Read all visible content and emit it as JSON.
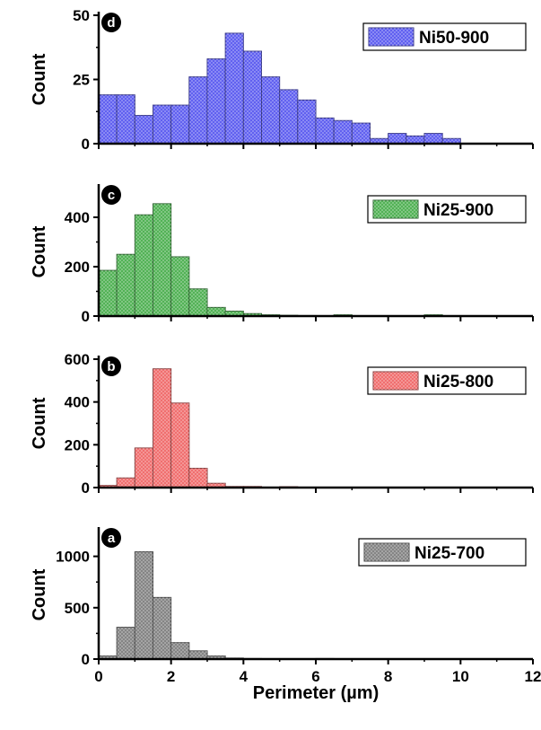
{
  "chart_data": [
    {
      "type": "bar",
      "panel": "d",
      "ylabel": "Count",
      "xlim": [
        0,
        12
      ],
      "ylim": [
        0,
        50
      ],
      "yticks": [
        0,
        25,
        50
      ],
      "bin_width": 0.5,
      "bin_starts": [
        0,
        0.5,
        1,
        1.5,
        2,
        2.5,
        3,
        3.5,
        4,
        4.5,
        5,
        5.5,
        6,
        6.5,
        7,
        7.5,
        8,
        8.5,
        9,
        9.5
      ],
      "series": [
        {
          "name": "Ni50-900",
          "values": [
            19,
            19,
            11,
            15,
            15,
            26,
            33,
            43,
            36,
            26,
            21,
            17,
            10,
            9,
            8,
            2,
            4,
            3,
            4,
            2
          ]
        }
      ],
      "color": "#5b5bf0"
    },
    {
      "type": "bar",
      "panel": "c",
      "ylabel": "Count",
      "xlim": [
        0,
        12
      ],
      "ylim": [
        0,
        520
      ],
      "yticks": [
        0,
        200,
        400
      ],
      "bin_width": 0.5,
      "bin_starts": [
        0,
        0.5,
        1,
        1.5,
        2,
        2.5,
        3,
        3.5,
        4,
        4.5,
        5,
        5.5,
        6,
        6.5,
        7,
        7.5,
        8,
        8.5,
        9,
        9.5
      ],
      "series": [
        {
          "name": "Ni25-900",
          "values": [
            185,
            250,
            410,
            455,
            240,
            110,
            35,
            20,
            10,
            5,
            3,
            2,
            1,
            5,
            1,
            1,
            1,
            1,
            5,
            1
          ]
        }
      ],
      "color": "#4caf50"
    },
    {
      "type": "bar",
      "panel": "b",
      "ylabel": "Count",
      "xlim": [
        0,
        12
      ],
      "ylim": [
        0,
        600
      ],
      "yticks": [
        0,
        200,
        400,
        600
      ],
      "bin_width": 0.5,
      "bin_starts": [
        0,
        0.5,
        1,
        1.5,
        2,
        2.5,
        3,
        3.5,
        4,
        4.5,
        5,
        5.5,
        6,
        6.5,
        7,
        7.5,
        8,
        8.5,
        9,
        9.5
      ],
      "series": [
        {
          "name": "Ni25-800",
          "values": [
            10,
            45,
            185,
            555,
            395,
            90,
            20,
            5,
            5,
            2,
            4,
            1,
            0,
            0,
            0,
            0,
            0,
            0,
            0,
            0
          ]
        }
      ],
      "color": "#f06a6a"
    },
    {
      "type": "bar",
      "panel": "a",
      "ylabel": "Count",
      "xlabel": "Perimeter (µm)",
      "xlim": [
        0,
        12
      ],
      "xticks": [
        0,
        2,
        4,
        6,
        8,
        10,
        12
      ],
      "ylim": [
        0,
        1250
      ],
      "yticks": [
        0,
        500,
        1000
      ],
      "bin_width": 0.5,
      "bin_starts": [
        0,
        0.5,
        1,
        1.5,
        2,
        2.5,
        3,
        3.5,
        4,
        4.5,
        5,
        5.5,
        6,
        6.5,
        7,
        7.5,
        8,
        8.5,
        9,
        9.5
      ],
      "series": [
        {
          "name": "Ni25-700",
          "values": [
            30,
            310,
            1045,
            600,
            160,
            80,
            30,
            10,
            5,
            2,
            2,
            1,
            5,
            1,
            0,
            0,
            0,
            0,
            0,
            0
          ]
        }
      ],
      "color": "#808080"
    }
  ]
}
